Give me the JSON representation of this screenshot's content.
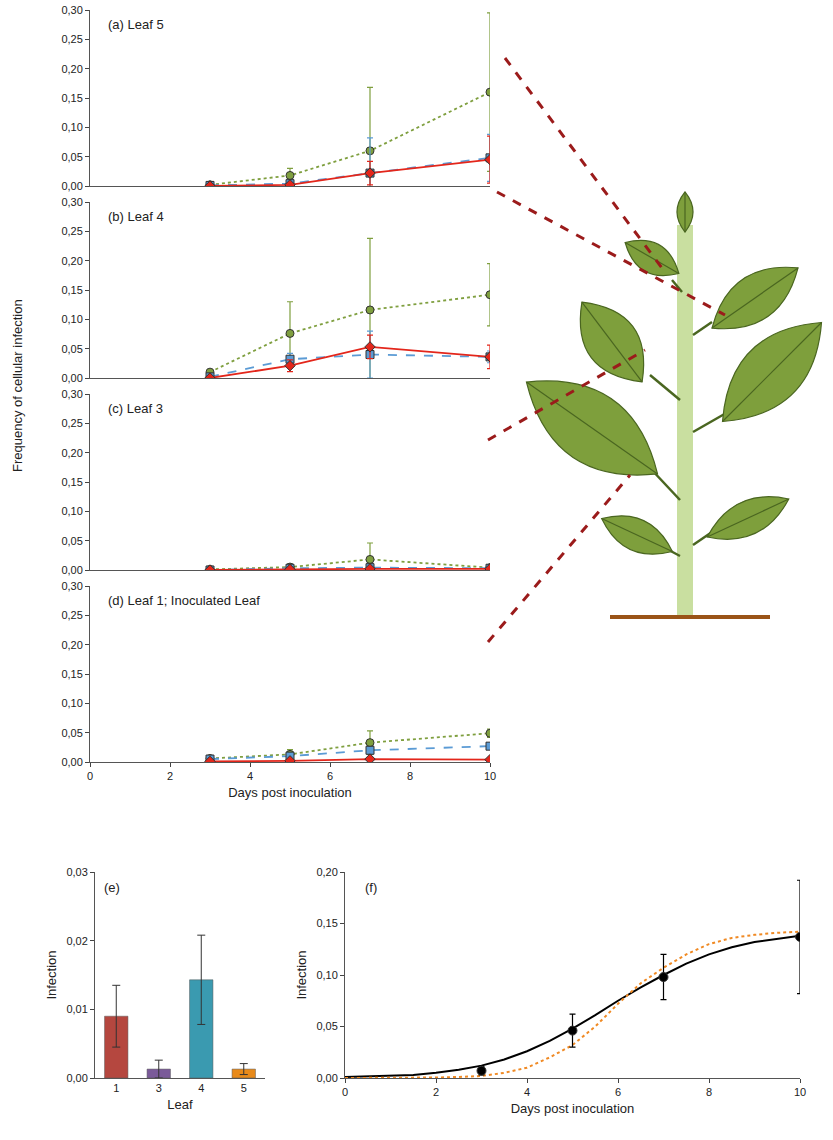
{
  "chart_data": [
    {
      "type": "line",
      "title": "(a) Leaf 5",
      "x": [
        3,
        5,
        7,
        10
      ],
      "xlim": [
        0,
        10
      ],
      "ylim": [
        0,
        0.3
      ],
      "yticks": [
        {
          "value": 0,
          "label": "0,00"
        },
        {
          "value": 0.05,
          "label": "0,05"
        },
        {
          "value": 0.1,
          "label": "0,10"
        },
        {
          "value": 0.15,
          "label": "0,15"
        },
        {
          "value": 0.2,
          "label": "0,20"
        },
        {
          "value": 0.25,
          "label": "0,25"
        },
        {
          "value": 0.3,
          "label": "0,30"
        }
      ],
      "tick_labels": "y",
      "grid": false,
      "series": [
        {
          "color": "#7f9f3f",
          "marker": "circle",
          "line_style": "dotted",
          "values": [
            0.002,
            0.018,
            0.06,
            0.16
          ],
          "errors": [
            0.001,
            0.012,
            0.108,
            0.135
          ]
        },
        {
          "color": "#5b9bd5",
          "marker": "square",
          "line_style": "dashed",
          "values": [
            0.001,
            0.004,
            0.022,
            0.048
          ],
          "errors": [
            0.001,
            0.003,
            0.06,
            0.04
          ]
        },
        {
          "color": "#e3261b",
          "marker": "diamond",
          "line_style": "solid",
          "values": [
            0,
            0.002,
            0.022,
            0.045
          ],
          "errors": [
            0,
            0.002,
            0.02,
            0.04
          ]
        }
      ]
    },
    {
      "type": "line",
      "title": "(b) Leaf 4",
      "x": [
        3,
        5,
        7,
        10
      ],
      "xlim": [
        0,
        10
      ],
      "ylim": [
        0,
        0.3
      ],
      "yticks": [
        {
          "value": 0,
          "label": "0,00"
        },
        {
          "value": 0.05,
          "label": "0,05"
        },
        {
          "value": 0.1,
          "label": "0,10"
        },
        {
          "value": 0.15,
          "label": "0,15"
        },
        {
          "value": 0.2,
          "label": "0,20"
        },
        {
          "value": 0.25,
          "label": "0,25"
        },
        {
          "value": 0.3,
          "label": "0,30"
        }
      ],
      "tick_labels": "y",
      "grid": false,
      "series": [
        {
          "color": "#7f9f3f",
          "marker": "circle",
          "line_style": "dotted",
          "values": [
            0.01,
            0.076,
            0.116,
            0.142
          ],
          "errors": [
            0.003,
            0.054,
            0.122,
            0.053
          ]
        },
        {
          "color": "#5b9bd5",
          "marker": "square",
          "line_style": "dashed",
          "values": [
            0.002,
            0.032,
            0.04,
            0.036
          ],
          "errors": [
            0.001,
            0.01,
            0.04,
            0.01
          ]
        },
        {
          "color": "#e3261b",
          "marker": "diamond",
          "line_style": "solid",
          "values": [
            0,
            0.021,
            0.053,
            0.036
          ],
          "errors": [
            0,
            0.01,
            0.02,
            0.02
          ]
        }
      ]
    },
    {
      "type": "line",
      "title": "(c) Leaf 3",
      "x": [
        3,
        5,
        7,
        10
      ],
      "xlim": [
        0,
        10
      ],
      "ylim": [
        0,
        0.3
      ],
      "yticks": [
        {
          "value": 0,
          "label": "0,00"
        },
        {
          "value": 0.05,
          "label": "0,05"
        },
        {
          "value": 0.1,
          "label": "0,10"
        },
        {
          "value": 0.15,
          "label": "0,15"
        },
        {
          "value": 0.2,
          "label": "0,20"
        },
        {
          "value": 0.25,
          "label": "0,25"
        },
        {
          "value": 0.3,
          "label": "0,30"
        }
      ],
      "tick_labels": "y",
      "grid": false,
      "series": [
        {
          "color": "#7f9f3f",
          "marker": "circle",
          "line_style": "dotted",
          "values": [
            0.001,
            0.005,
            0.018,
            0.004
          ],
          "errors": [
            0.001,
            0.004,
            0.028,
            0.003
          ]
        },
        {
          "color": "#5b9bd5",
          "marker": "square",
          "line_style": "dashed",
          "values": [
            0,
            0.003,
            0.004,
            0.003
          ],
          "errors": [
            0,
            0.002,
            0.003,
            0.002
          ]
        },
        {
          "color": "#e3261b",
          "marker": "diamond",
          "line_style": "solid",
          "values": [
            0,
            0.001,
            0.002,
            0.002
          ],
          "errors": [
            0,
            0.001,
            0.001,
            0.001
          ]
        }
      ]
    },
    {
      "type": "line",
      "title": "(d) Leaf 1; Inoculated Leaf",
      "x": [
        3,
        5,
        7,
        10
      ],
      "xlim": [
        0,
        10
      ],
      "xticks": [
        0,
        2,
        4,
        6,
        8,
        10
      ],
      "xlabel": "Days post inoculation",
      "ylim": [
        0,
        0.3
      ],
      "yticks": [
        {
          "value": 0,
          "label": "0,00"
        },
        {
          "value": 0.05,
          "label": "0,05"
        },
        {
          "value": 0.1,
          "label": "0,10"
        },
        {
          "value": 0.15,
          "label": "0,15"
        },
        {
          "value": 0.2,
          "label": "0,20"
        },
        {
          "value": 0.25,
          "label": "0,25"
        },
        {
          "value": 0.3,
          "label": "0,30"
        }
      ],
      "grid": false,
      "series": [
        {
          "color": "#7f9f3f",
          "marker": "circle",
          "line_style": "dotted",
          "values": [
            0.006,
            0.013,
            0.033,
            0.049
          ],
          "errors": [
            0.003,
            0.008,
            0.02,
            0.007
          ]
        },
        {
          "color": "#5b9bd5",
          "marker": "square",
          "line_style": "dashed",
          "values": [
            0.005,
            0.01,
            0.02,
            0.027
          ],
          "errors": [
            0.002,
            0.003,
            0.004,
            0.004
          ]
        },
        {
          "color": "#e3261b",
          "marker": "diamond",
          "line_style": "solid",
          "values": [
            0.001,
            0.002,
            0.005,
            0.004
          ],
          "errors": [
            0.001,
            0.001,
            0.002,
            0.001
          ]
        }
      ]
    },
    {
      "type": "bar",
      "title": "(e)",
      "categories": [
        "1",
        "3",
        "4",
        "5"
      ],
      "values": [
        0.009,
        0.0013,
        0.0143,
        0.0013
      ],
      "errors": [
        0.0045,
        0.0013,
        0.0065,
        0.0008
      ],
      "colors": [
        "#b5473f",
        "#7a5a99",
        "#3a9ab0",
        "#e88a1a"
      ],
      "xlabel": "Leaf",
      "ylabel": "Infection",
      "ylim": [
        0,
        0.03
      ],
      "yticks": [
        {
          "value": 0,
          "label": "0,00"
        },
        {
          "value": 0.01,
          "label": "0,01"
        },
        {
          "value": 0.02,
          "label": "0,02"
        },
        {
          "value": 0.03,
          "label": "0,03"
        }
      ],
      "grid": false
    },
    {
      "type": "line",
      "title": "(f)",
      "xlabel": "Days post inoculation",
      "ylabel": "Infection",
      "xlim": [
        0,
        10
      ],
      "xticks": [
        0,
        2,
        4,
        6,
        8,
        10
      ],
      "ylim": [
        0,
        0.2
      ],
      "yticks": [
        {
          "value": 0,
          "label": "0,00"
        },
        {
          "value": 0.05,
          "label": "0,05"
        },
        {
          "value": 0.1,
          "label": "0,10"
        },
        {
          "value": 0.15,
          "label": "0,15"
        },
        {
          "value": 0.2,
          "label": "0,20"
        }
      ],
      "grid": false,
      "series": [
        {
          "type": "line",
          "color": "#000000",
          "line_style": "solid",
          "x": [
            0,
            0.5,
            1,
            1.5,
            2,
            2.5,
            3,
            3.5,
            4,
            4.5,
            5,
            5.5,
            6,
            6.5,
            7,
            7.5,
            8,
            8.5,
            9,
            9.5,
            10
          ],
          "values": [
            0.001,
            0.0015,
            0.002,
            0.003,
            0.005,
            0.008,
            0.012,
            0.018,
            0.026,
            0.036,
            0.048,
            0.061,
            0.075,
            0.088,
            0.1,
            0.111,
            0.12,
            0.127,
            0.132,
            0.135,
            0.138
          ]
        },
        {
          "type": "line",
          "color": "#f08a24",
          "line_style": "dotted",
          "x": [
            0,
            0.5,
            1,
            1.5,
            2,
            2.5,
            3,
            3.5,
            4,
            4.5,
            5,
            5.5,
            6,
            6.5,
            7,
            7.5,
            8,
            8.5,
            9,
            9.5,
            10
          ],
          "values": [
            0,
            0,
            0,
            0.0002,
            0.0005,
            0.001,
            0.002,
            0.005,
            0.01,
            0.02,
            0.032,
            0.05,
            0.072,
            0.092,
            0.107,
            0.12,
            0.13,
            0.136,
            0.139,
            0.141,
            0.142
          ]
        },
        {
          "type": "scatter",
          "color": "#000000",
          "marker": "circle",
          "x": [
            3,
            5,
            7,
            10
          ],
          "values": [
            0.007,
            0.046,
            0.098,
            0.137
          ],
          "errors": [
            0.004,
            0.016,
            0.022,
            0.055
          ]
        }
      ]
    }
  ],
  "shared_ylabel": "Frequency of cellular infection"
}
